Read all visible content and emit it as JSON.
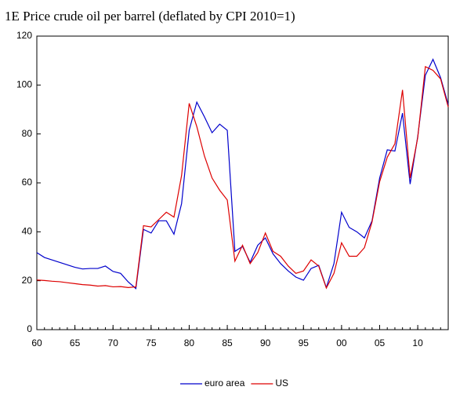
{
  "chart_data": {
    "type": "line",
    "title": "1E   Price crude oil per barrel (deflated by CPI 2010=1)",
    "x": [
      1960,
      1961,
      1962,
      1963,
      1964,
      1965,
      1966,
      1967,
      1968,
      1969,
      1970,
      1971,
      1972,
      1973,
      1974,
      1975,
      1976,
      1977,
      1978,
      1979,
      1980,
      1981,
      1982,
      1983,
      1984,
      1985,
      1986,
      1987,
      1988,
      1989,
      1990,
      1991,
      1992,
      1993,
      1994,
      1995,
      1996,
      1997,
      1998,
      1999,
      2000,
      2001,
      2002,
      2003,
      2004,
      2005,
      2006,
      2007,
      2008,
      2009,
      2010,
      2011,
      2012,
      2013,
      2014
    ],
    "series": [
      {
        "name": "euro area",
        "color": "#0000cc",
        "values": [
          31.5,
          29.5,
          28.5,
          27.5,
          26.5,
          25.5,
          24.8,
          25,
          25,
          26,
          23.8,
          23,
          19.5,
          16.8,
          41,
          39.5,
          44.5,
          44.5,
          39,
          51.5,
          81.5,
          93,
          87,
          80.5,
          84,
          81.5,
          32,
          34,
          27.5,
          34.5,
          37.5,
          31,
          27,
          24,
          21.5,
          20.2,
          25,
          26.3,
          17.2,
          27,
          48,
          41.8,
          40,
          37.5,
          44.5,
          62,
          73.5,
          73,
          88.5,
          59.5,
          79,
          104,
          110.5,
          103,
          92
        ]
      },
      {
        "name": "US",
        "color": "#dd0000",
        "values": [
          20.3,
          20.1,
          19.8,
          19.6,
          19.2,
          18.8,
          18.4,
          18.2,
          17.8,
          18,
          17.5,
          17.6,
          17.2,
          17.5,
          42.5,
          42,
          45,
          48,
          46,
          63,
          92.5,
          83,
          71,
          62,
          57,
          53,
          28,
          34.5,
          27,
          31.5,
          39.5,
          32,
          30,
          26,
          23,
          24,
          28.5,
          26,
          17,
          23,
          35.5,
          30,
          30,
          33.5,
          44,
          60.5,
          70.5,
          76,
          98,
          62,
          78.5,
          107.5,
          106,
          102.5,
          91
        ]
      }
    ],
    "xlim": [
      1960,
      2014
    ],
    "xticks": [
      {
        "value": 1960,
        "label": "60"
      },
      {
        "value": 1965,
        "label": "65"
      },
      {
        "value": 1970,
        "label": "70"
      },
      {
        "value": 1975,
        "label": "75"
      },
      {
        "value": 1980,
        "label": "80"
      },
      {
        "value": 1985,
        "label": "85"
      },
      {
        "value": 1990,
        "label": "90"
      },
      {
        "value": 1995,
        "label": "95"
      },
      {
        "value": 2000,
        "label": "00"
      },
      {
        "value": 2005,
        "label": "05"
      },
      {
        "value": 2010,
        "label": "10"
      }
    ],
    "ylim": [
      0,
      120
    ],
    "yticks": [
      0,
      20,
      40,
      60,
      80,
      100,
      120
    ],
    "legend": "bottom"
  }
}
